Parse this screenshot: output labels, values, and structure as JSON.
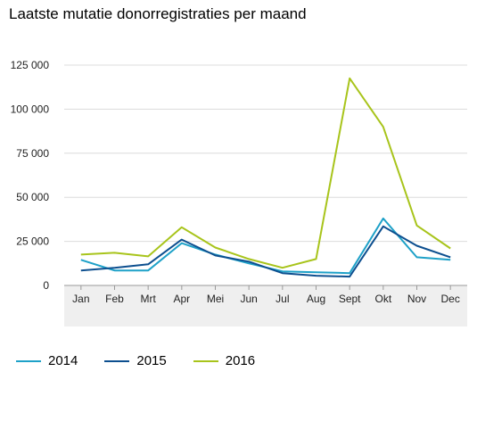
{
  "chart_data": {
    "type": "line",
    "title": "Laatste mutatie donorregistraties per maand",
    "categories": [
      "Jan",
      "Feb",
      "Mrt",
      "Apr",
      "Mei",
      "Jun",
      "Jul",
      "Aug",
      "Sept",
      "Okt",
      "Nov",
      "Dec"
    ],
    "yticks": [
      0,
      25000,
      50000,
      75000,
      100000,
      125000
    ],
    "ytick_labels": [
      "0",
      "25 000",
      "50 000",
      "75 000",
      "100 000",
      "125 000"
    ],
    "ylim": [
      0,
      125000
    ],
    "grid": true,
    "legend_position": "bottom-left",
    "series": [
      {
        "name": "2014",
        "color": "#1ea1c8",
        "values": [
          14500,
          8500,
          8500,
          24000,
          17500,
          12500,
          8000,
          7500,
          7000,
          38000,
          16000,
          14500
        ]
      },
      {
        "name": "2015",
        "color": "#0d4f8f",
        "values": [
          8500,
          10000,
          12000,
          26000,
          17000,
          13500,
          7000,
          5500,
          5000,
          33500,
          22500,
          16000
        ]
      },
      {
        "name": "2016",
        "color": "#a8c41b",
        "values": [
          17500,
          18500,
          16500,
          33000,
          21500,
          15000,
          10000,
          15000,
          117500,
          90000,
          34000,
          21000
        ]
      }
    ]
  }
}
